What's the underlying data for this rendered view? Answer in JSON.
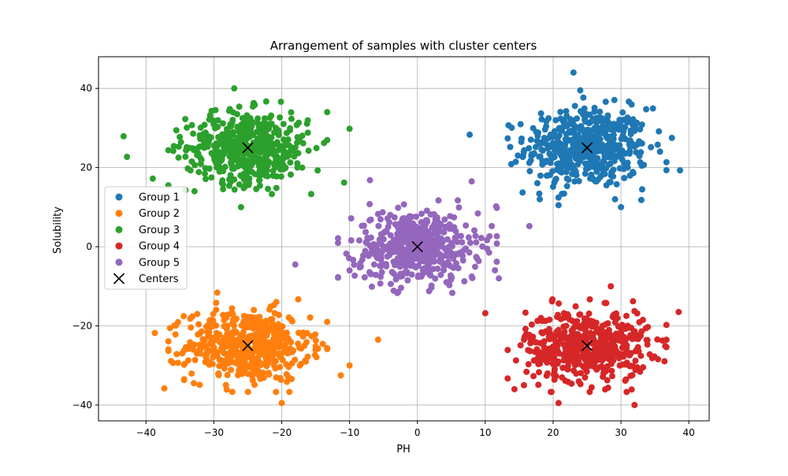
{
  "chart_data": {
    "type": "scatter",
    "title": "Arrangement of samples with cluster centers",
    "xlabel": "PH",
    "ylabel": "Solubility",
    "xlim": [
      -47,
      43
    ],
    "ylim": [
      -44,
      48
    ],
    "xticks": [
      -40,
      -30,
      -20,
      -10,
      0,
      10,
      20,
      30,
      40
    ],
    "yticks": [
      -40,
      -20,
      0,
      20,
      40
    ],
    "grid": true,
    "legend_position": "center-left",
    "series": [
      {
        "name": "Group 1",
        "color": "#1f77b4",
        "center": [
          25,
          25
        ],
        "spread": [
          4.5,
          5.0
        ],
        "count": 500,
        "outliers": [
          [
            23.0,
            44.0
          ],
          [
            24.0,
            39.5
          ],
          [
            7.7,
            28.3
          ],
          [
            15.5,
            13.7
          ],
          [
            38.7,
            19.3
          ],
          [
            30.0,
            10.0
          ],
          [
            20.8,
            10.5
          ],
          [
            33.0,
            11.8
          ],
          [
            37.5,
            27.5
          ]
        ]
      },
      {
        "name": "Group 2",
        "color": "#ff7f0e",
        "center": [
          -25,
          -25
        ],
        "spread": [
          4.5,
          4.5
        ],
        "count": 500,
        "outliers": [
          [
            -5.8,
            -23.5
          ],
          [
            -10.0,
            -30.0
          ],
          [
            -38.7,
            -21.8
          ],
          [
            -37.3,
            -35.8
          ],
          [
            -29.5,
            -11.6
          ],
          [
            -20.0,
            -39.5
          ],
          [
            -11.3,
            -32.5
          ]
        ]
      },
      {
        "name": "Group 3",
        "color": "#2ca02c",
        "center": [
          -25,
          25
        ],
        "spread": [
          4.5,
          4.5
        ],
        "count": 500,
        "outliers": [
          [
            -43.3,
            27.9
          ],
          [
            -42.8,
            22.7
          ],
          [
            -39.0,
            17.2
          ],
          [
            -27.0,
            40.0
          ],
          [
            -26.0,
            10.0
          ],
          [
            -10.0,
            29.8
          ],
          [
            -13.3,
            34.0
          ],
          [
            -10.8,
            16.2
          ]
        ]
      },
      {
        "name": "Group 4",
        "color": "#d62728",
        "center": [
          25,
          -25
        ],
        "spread": [
          4.5,
          4.5
        ],
        "count": 500,
        "outliers": [
          [
            10.0,
            -16.8
          ],
          [
            15.7,
            -35.0
          ],
          [
            28.5,
            -10.0
          ],
          [
            32.0,
            -40.0
          ],
          [
            38.5,
            -16.5
          ],
          [
            20.8,
            -39.5
          ],
          [
            14.3,
            -36.0
          ]
        ]
      },
      {
        "name": "Group 5",
        "color": "#9467bd",
        "center": [
          0,
          0
        ],
        "spread": [
          4.5,
          4.5
        ],
        "count": 500,
        "outliers": [
          [
            8.0,
            16.5
          ],
          [
            -7.0,
            16.8
          ],
          [
            16.5,
            5.2
          ],
          [
            -18.0,
            -4.5
          ],
          [
            -10.0,
            -6.0
          ],
          [
            11.6,
            10.2
          ],
          [
            12.0,
            -8.0
          ]
        ]
      }
    ],
    "centers": {
      "name": "Centers",
      "marker": "x",
      "color": "#000000",
      "points": [
        [
          25,
          25
        ],
        [
          -25,
          -25
        ],
        [
          -25,
          25
        ],
        [
          25,
          -25
        ],
        [
          0,
          0
        ]
      ]
    },
    "legend_entries": [
      "Group 1",
      "Group 2",
      "Group 3",
      "Group 4",
      "Group 5",
      "Centers"
    ]
  }
}
